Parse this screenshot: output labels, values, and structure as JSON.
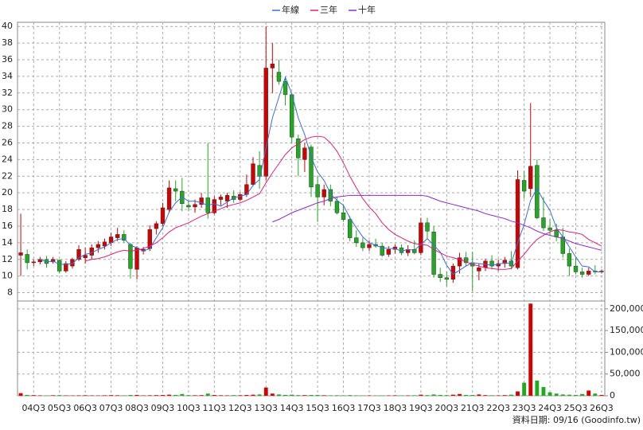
{
  "chart_data": {
    "type": "candlestick",
    "categories": [
      null,
      null,
      "04Q3",
      null,
      null,
      null,
      "05Q3",
      null,
      null,
      null,
      "06Q3",
      null,
      null,
      null,
      "07Q3",
      null,
      null,
      null,
      "08Q3",
      null,
      null,
      null,
      "09Q3",
      null,
      null,
      null,
      "10Q3",
      null,
      null,
      null,
      "11Q3",
      null,
      null,
      null,
      "12Q3",
      null,
      null,
      null,
      "13Q3",
      null,
      null,
      null,
      "14Q3",
      null,
      null,
      null,
      "15Q3",
      null,
      null,
      null,
      "16Q3",
      null,
      null,
      null,
      "17Q3",
      null,
      null,
      null,
      "18Q3",
      null,
      null,
      null,
      "19Q3",
      null,
      null,
      null,
      "20Q3",
      null,
      null,
      null,
      "21Q3",
      null,
      null,
      null,
      "22Q3",
      null,
      null,
      null,
      "23Q3",
      null,
      null,
      null,
      "24Q3",
      null,
      null,
      null,
      "25Q3",
      null,
      null,
      null,
      "26Q3"
    ],
    "open": [
      12.5,
      12.6,
      11.6,
      11.7,
      12,
      11.7,
      11.9,
      10.6,
      11.2,
      12,
      12.2,
      12.5,
      13.4,
      13.6,
      14,
      14.6,
      15,
      13.8,
      10.8,
      13,
      13.3,
      15.7,
      16.3,
      18,
      20.5,
      20.2,
      18.5,
      18.3,
      18.6,
      19.4,
      17.6,
      19.2,
      19,
      19.6,
      19.2,
      19.8,
      21,
      23.3,
      22,
      35,
      34.5,
      33.4,
      31.8,
      26.5,
      24,
      25.5,
      21,
      19.5,
      20.4,
      19,
      17.6,
      16.8,
      14.6,
      14,
      13.4,
      13.8,
      13.6,
      12.6,
      13.2,
      13.4,
      12.8,
      13.2,
      12.8,
      16.4,
      15.3,
      10.2,
      9.8,
      9.6,
      11.2,
      12.2,
      11.6,
      10.6,
      11,
      11.8,
      11.2,
      11.5,
      11.8,
      11,
      21.5,
      20.5,
      23.3,
      17,
      15.8,
      15.5,
      14.7,
      12.7,
      11.2,
      10.5,
      10.2,
      10.6,
      10.5
    ],
    "high": [
      17.5,
      13.2,
      12,
      12.3,
      12.4,
      12.3,
      12,
      11.8,
      12.2,
      13.7,
      13.4,
      13.8,
      14.2,
      14.5,
      15.2,
      15.8,
      15.5,
      14,
      13.6,
      13.5,
      16.1,
      16.6,
      18.8,
      21.5,
      21.5,
      21.8,
      19,
      19.2,
      20,
      26,
      19.6,
      19.8,
      20,
      20.3,
      20.1,
      22.2,
      24.3,
      25,
      40,
      38,
      36,
      34,
      32,
      27,
      26,
      25.8,
      22,
      21,
      21,
      19.5,
      18.5,
      17.2,
      15.5,
      14.6,
      14.3,
      14.5,
      14,
      13.6,
      13.8,
      13.8,
      13.7,
      14.3,
      17,
      17,
      16,
      11,
      10.5,
      11.5,
      12.8,
      12.9,
      12.9,
      11.5,
      12.1,
      12.5,
      12,
      12.3,
      13,
      22.7,
      22.6,
      30.8,
      24,
      19.5,
      16.8,
      16.3,
      15.8,
      13.3,
      12.2,
      11,
      11,
      11.3,
      10.8
    ],
    "low": [
      10,
      10.8,
      11.2,
      11.4,
      11,
      11.5,
      10.3,
      10.4,
      10.9,
      11.8,
      11.5,
      12,
      12.8,
      13.2,
      13.6,
      14.2,
      14,
      9.7,
      9.6,
      12.6,
      13,
      15,
      16,
      17.6,
      19,
      17.8,
      17.8,
      17.6,
      18.2,
      16.9,
      17.4,
      18.5,
      18.2,
      18.8,
      19,
      19.5,
      20.8,
      20.5,
      21.5,
      32,
      33,
      30.5,
      26,
      22,
      22.5,
      19.5,
      16.5,
      18.5,
      18.4,
      17.4,
      16.5,
      14.2,
      13.5,
      13,
      13,
      13.4,
      12.3,
      12.3,
      12.7,
      12.5,
      12.4,
      12.6,
      12.5,
      14.5,
      9.8,
      9.3,
      8.8,
      9.2,
      10.3,
      11.2,
      8.2,
      9.5,
      10.6,
      10.8,
      10.6,
      11,
      10.8,
      10.8,
      19.3,
      19.5,
      16.8,
      15.4,
      14.8,
      14.2,
      12.2,
      10,
      10.2,
      9.8,
      10,
      10.2,
      10.3
    ],
    "close": [
      12.8,
      11.6,
      11.7,
      12,
      11.5,
      12,
      10.6,
      11.5,
      12,
      13.2,
      12.5,
      13.4,
      13.8,
      14.1,
      14.7,
      15,
      14.3,
      10.9,
      13.4,
      13.2,
      15.6,
      16.3,
      18.2,
      20.6,
      20.2,
      18.7,
      18.3,
      18.6,
      19.4,
      17.6,
      19.2,
      19.5,
      19.7,
      19.2,
      19.8,
      21,
      23.5,
      22,
      35,
      35.5,
      33.4,
      31.8,
      26.7,
      24.2,
      25.4,
      20.7,
      19.5,
      20.4,
      19,
      17.6,
      16.8,
      14.6,
      14,
      13.4,
      13.8,
      13.6,
      12.5,
      13.2,
      13.5,
      12.8,
      13.2,
      12.8,
      16.4,
      15.4,
      10.2,
      9.8,
      9.6,
      11.2,
      12.2,
      11.6,
      11.2,
      11,
      11.8,
      11.2,
      11.5,
      11.9,
      11.2,
      21.6,
      20.2,
      23.2,
      17,
      15.8,
      15.5,
      14.7,
      12.7,
      11.2,
      10.5,
      10.2,
      10.6,
      10.5,
      10.6
    ],
    "volume": [
      6000,
      2000,
      1500,
      1000,
      800,
      1200,
      1500,
      900,
      700,
      1000,
      1200,
      900,
      800,
      1100,
      1500,
      1200,
      1000,
      1800,
      2000,
      900,
      1200,
      1500,
      1800,
      2500,
      2000,
      4000,
      1500,
      1200,
      1500,
      5000,
      1800,
      1200,
      1000,
      1500,
      1200,
      1800,
      2500,
      3000,
      19000,
      5000,
      3000,
      2000,
      2500,
      1500,
      1500,
      1800,
      2000,
      1200,
      1000,
      1200,
      900,
      1500,
      1000,
      800,
      900,
      700,
      800,
      900,
      1000,
      800,
      900,
      1200,
      2500,
      1500,
      3000,
      2000,
      1500,
      2500,
      4000,
      2000,
      1800,
      3000,
      1500,
      1200,
      1000,
      1500,
      2500,
      10000,
      30000,
      212000,
      35000,
      20000,
      8000,
      5000,
      3000,
      2500,
      2000,
      4000,
      12000,
      5000,
      2000
    ],
    "series": [
      {
        "name": "年線",
        "color": "#3a6fd8",
        "values": [
          null,
          null,
          null,
          12.0,
          11.7,
          11.8,
          11.4,
          11.4,
          11.5,
          12.2,
          12.6,
          12.8,
          13.2,
          13.5,
          14.0,
          14.4,
          14.5,
          13.7,
          13.4,
          13.0,
          13.3,
          14.6,
          15.8,
          17.7,
          18.8,
          19.5,
          19.0,
          19.0,
          18.8,
          18.5,
          18.7,
          18.4,
          18.9,
          19.4,
          19.6,
          19.8,
          20.9,
          21.6,
          25.4,
          29.0,
          31.5,
          33.9,
          31.9,
          29.0,
          27.0,
          24.3,
          22.5,
          21.5,
          19.9,
          19.1,
          18.5,
          17.0,
          15.8,
          14.7,
          14.0,
          13.7,
          13.4,
          13.3,
          13.3,
          13.0,
          13.2,
          13.1,
          13.8,
          14.5,
          13.7,
          12.9,
          11.3,
          10.2,
          10.7,
          11.2,
          11.6,
          11.5,
          11.4,
          11.3,
          11.4,
          11.6,
          11.5,
          14.0,
          16.2,
          19.1,
          20.5,
          19.1,
          17.9,
          15.8,
          14.7,
          13.5,
          12.3,
          11.2,
          11.1,
          10.5,
          10.5
        ]
      },
      {
        "name": "三年",
        "color": "#e0207a",
        "values": [
          null,
          null,
          null,
          null,
          null,
          null,
          null,
          null,
          null,
          null,
          11.8,
          12.0,
          12.1,
          12.3,
          12.6,
          12.9,
          13.1,
          13.0,
          13.1,
          13.3,
          13.6,
          14.0,
          14.6,
          15.3,
          15.8,
          16.1,
          16.4,
          16.8,
          17.2,
          17.5,
          17.8,
          18.1,
          18.4,
          18.6,
          18.8,
          19.1,
          19.5,
          19.9,
          21.2,
          22.4,
          23.5,
          24.6,
          25.4,
          25.9,
          26.4,
          26.7,
          26.8,
          26.7,
          26.0,
          25.0,
          23.6,
          22.0,
          20.6,
          19.3,
          18.3,
          17.5,
          16.4,
          15.6,
          15.0,
          14.6,
          14.2,
          13.9,
          13.8,
          13.7,
          13.2,
          12.8,
          12.4,
          12.2,
          12.0,
          11.7,
          11.4,
          11.2,
          11.0,
          10.9,
          10.8,
          10.8,
          10.9,
          11.8,
          12.6,
          13.6,
          14.4,
          14.9,
          15.3,
          15.6,
          15.5,
          15.3,
          15.2,
          15.0,
          14.4,
          14.0,
          13.6
        ]
      },
      {
        "name": "十年",
        "color": "#8a2bd0",
        "values": [
          null,
          null,
          null,
          null,
          null,
          null,
          null,
          null,
          null,
          null,
          null,
          null,
          null,
          null,
          null,
          null,
          null,
          null,
          null,
          null,
          null,
          null,
          null,
          null,
          null,
          null,
          null,
          null,
          null,
          null,
          null,
          null,
          null,
          null,
          null,
          null,
          null,
          null,
          null,
          16.5,
          16.8,
          17.2,
          17.6,
          17.9,
          18.2,
          18.5,
          18.8,
          19.0,
          19.3,
          19.5,
          19.6,
          19.7,
          19.7,
          19.7,
          19.7,
          19.7,
          19.7,
          19.7,
          19.7,
          19.7,
          19.7,
          19.7,
          19.7,
          19.6,
          19.3,
          19.0,
          18.8,
          18.6,
          18.4,
          18.2,
          18.0,
          17.8,
          17.5,
          17.3,
          17.1,
          16.9,
          16.6,
          16.4,
          16.1,
          15.8,
          15.4,
          15.1,
          14.9,
          14.7,
          14.5,
          14.2,
          13.9,
          13.7,
          13.5,
          13.3,
          13.1
        ]
      }
    ],
    "up_color": "#d40000",
    "down_color": "#1faa1f",
    "ylim": [
      7,
      40.5
    ],
    "yticks": [
      8,
      10,
      12,
      14,
      16,
      18,
      20,
      22,
      24,
      26,
      28,
      30,
      32,
      34,
      36,
      38,
      40
    ],
    "y2lim": [
      0,
      218000
    ],
    "y2ticks": [
      0,
      {
        "value": 50000,
        "label": "50,000"
      },
      {
        "value": 100000,
        "label": "100,000"
      },
      {
        "value": 150000,
        "label": "150,000"
      },
      {
        "value": 200000,
        "label": "200,000"
      }
    ],
    "grid": true,
    "legend": "top",
    "footnote": "資料日期: 09/16 (Goodinfo.tw)"
  }
}
